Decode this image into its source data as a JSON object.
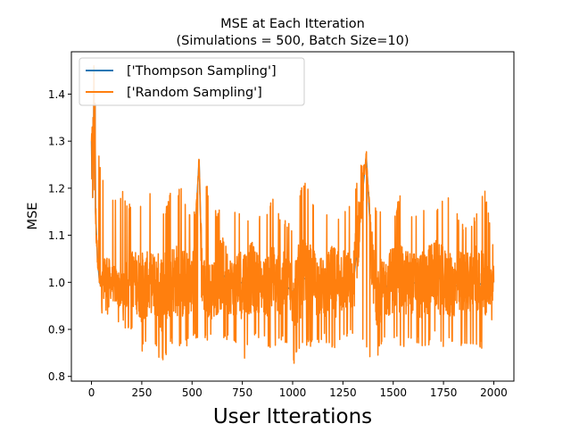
{
  "chart_data": {
    "type": "line",
    "title": "MSE at Each Itteration",
    "subtitle": "(Simulations = 500, Batch Size=10)",
    "xlabel": "User Itterations",
    "ylabel": "MSE",
    "xlim": [
      -100,
      2100
    ],
    "ylim": [
      0.79,
      1.49
    ],
    "xticks": [
      0,
      250,
      500,
      750,
      1000,
      1250,
      1500,
      1750,
      2000
    ],
    "xtick_labels": [
      "0",
      "250",
      "500",
      "750",
      "1000",
      "1250",
      "1500",
      "1750",
      "2000"
    ],
    "yticks": [
      0.8,
      0.9,
      1.0,
      1.1,
      1.2,
      1.3,
      1.4
    ],
    "ytick_labels": [
      "0.8",
      "0.9",
      "1.0",
      "1.1",
      "1.2",
      "1.3",
      "1.4"
    ],
    "grid": false,
    "legend_position": "upper-left",
    "series": [
      {
        "name": "['Thompson Sampling']",
        "color": "#1f77b4",
        "x": [
          0,
          2,
          4,
          6,
          8,
          10,
          12,
          14,
          16,
          18,
          20,
          25,
          30,
          40,
          50,
          70,
          100,
          150,
          200,
          250,
          300,
          350,
          400,
          450,
          500,
          535,
          550,
          600,
          650,
          700,
          750,
          800,
          850,
          900,
          950,
          1000,
          1050,
          1100,
          1150,
          1200,
          1250,
          1300,
          1366,
          1400,
          1450,
          1500,
          1550,
          1600,
          1650,
          1700,
          1750,
          1800,
          1850,
          1900,
          1950,
          2000
        ],
        "values": [
          1.3,
          1.22,
          1.33,
          1.18,
          1.35,
          1.25,
          1.45,
          1.28,
          1.2,
          1.38,
          1.15,
          1.1,
          1.05,
          1.0,
          0.99,
          1.02,
          1.0,
          0.98,
          1.01,
          0.99,
          1.0,
          0.98,
          1.01,
          1.0,
          0.99,
          1.26,
          1.0,
          0.98,
          1.02,
          0.99,
          1.0,
          1.01,
          0.99,
          1.0,
          1.0,
          0.98,
          1.01,
          1.0,
          0.99,
          1.0,
          1.01,
          0.99,
          1.27,
          1.0,
          0.98,
          1.01,
          1.0,
          1.0,
          0.99,
          1.02,
          1.0,
          0.99,
          1.0,
          1.01,
          0.99,
          1.0
        ]
      },
      {
        "name": "['Random Sampling']",
        "color": "#ff7f0e",
        "x": [
          0,
          2,
          4,
          6,
          8,
          10,
          12,
          14,
          16,
          18,
          20,
          25,
          30,
          40,
          50,
          70,
          100,
          150,
          200,
          250,
          300,
          350,
          400,
          450,
          500,
          535,
          550,
          600,
          650,
          700,
          750,
          800,
          850,
          900,
          950,
          1000,
          1050,
          1100,
          1150,
          1200,
          1250,
          1300,
          1366,
          1400,
          1450,
          1500,
          1550,
          1600,
          1650,
          1700,
          1750,
          1800,
          1850,
          1900,
          1950,
          2000
        ],
        "values": [
          1.3,
          1.22,
          1.33,
          1.18,
          1.35,
          1.25,
          1.46,
          1.28,
          1.2,
          1.38,
          1.15,
          1.1,
          1.05,
          1.0,
          0.99,
          1.02,
          1.0,
          0.98,
          1.01,
          0.99,
          1.0,
          0.98,
          1.01,
          1.0,
          0.99,
          1.26,
          1.0,
          0.98,
          1.02,
          0.99,
          1.0,
          1.01,
          0.99,
          1.0,
          1.0,
          0.98,
          1.01,
          1.0,
          0.99,
          1.0,
          1.01,
          0.99,
          1.27,
          1.0,
          0.98,
          1.01,
          1.0,
          1.0,
          0.99,
          1.02,
          1.0,
          0.99,
          1.0,
          1.01,
          0.99,
          1.0
        ],
        "noise_envelope": {
          "x": [
            0,
            50,
            100,
            150,
            200,
            250,
            300,
            350,
            400,
            450,
            500,
            550,
            600,
            650,
            700,
            750,
            800,
            850,
            900,
            950,
            1000,
            1050,
            1100,
            1150,
            1200,
            1250,
            1300,
            1350,
            1400,
            1450,
            1500,
            1550,
            1600,
            1650,
            1700,
            1750,
            1800,
            1850,
            1900,
            1950,
            2000
          ],
          "upper": [
            1.42,
            1.23,
            1.18,
            1.2,
            1.16,
            1.17,
            1.2,
            1.14,
            1.2,
            1.2,
            1.14,
            1.26,
            1.15,
            1.16,
            1.16,
            1.14,
            1.15,
            1.15,
            1.18,
            1.14,
            1.12,
            1.22,
            1.18,
            1.17,
            1.14,
            1.16,
            1.19,
            1.27,
            1.16,
            1.16,
            1.15,
            1.2,
            1.15,
            1.16,
            1.14,
            1.19,
            1.17,
            1.12,
            1.14,
            1.21,
            1.08
          ],
          "lower": [
            1.16,
            0.93,
            0.93,
            0.9,
            0.9,
            0.85,
            0.88,
            0.82,
            0.87,
            0.85,
            0.88,
            0.88,
            0.87,
            0.87,
            0.88,
            0.83,
            0.87,
            0.89,
            0.84,
            0.88,
            0.82,
            0.86,
            0.86,
            0.88,
            0.85,
            0.87,
            0.89,
            0.86,
            0.82,
            0.87,
            0.87,
            0.86,
            0.88,
            0.85,
            0.88,
            0.86,
            0.87,
            0.85,
            0.86,
            0.86,
            0.93
          ]
        }
      }
    ]
  }
}
